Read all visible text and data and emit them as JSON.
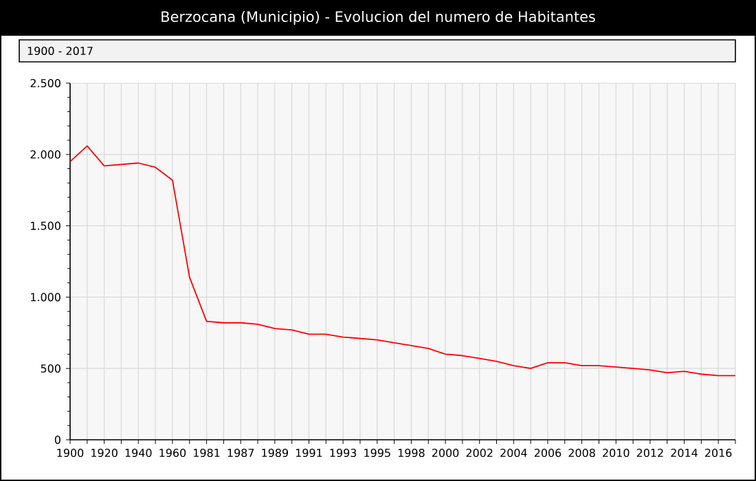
{
  "chart_data": {
    "type": "line",
    "title": "Berzocana (Municipio) - Evolucion del numero de Habitantes",
    "subtitle": "1900 - 2017",
    "categories": [
      "1900",
      null,
      "1920",
      null,
      "1940",
      null,
      "1960",
      null,
      "1981",
      null,
      "1987",
      null,
      "1989",
      null,
      "1991",
      null,
      "1993",
      null,
      "1995",
      null,
      "1998",
      null,
      "2000",
      null,
      "2002",
      null,
      "2004",
      null,
      "2006",
      null,
      "2008",
      null,
      "2010",
      null,
      "2012",
      null,
      "2014",
      null,
      "2016",
      null
    ],
    "series": [
      {
        "color": "#ff0000",
        "values": [
          1950,
          2060,
          1920,
          1930,
          1940,
          1910,
          1820,
          1140,
          830,
          820,
          820,
          810,
          780,
          770,
          740,
          740,
          720,
          710,
          700,
          680,
          660,
          640,
          600,
          590,
          570,
          550,
          520,
          500,
          540,
          540,
          520,
          520,
          510,
          500,
          490,
          470,
          480,
          460,
          450,
          450
        ]
      }
    ],
    "ylim": [
      0,
      2500
    ],
    "yticks": [
      {
        "value": 0,
        "label": "0"
      },
      {
        "value": 500,
        "label": "500"
      },
      {
        "value": 1000,
        "label": "1.000"
      },
      {
        "value": 1500,
        "label": "1.500"
      },
      {
        "value": 2000,
        "label": "2.000"
      },
      {
        "value": 2500,
        "label": "2.500"
      }
    ],
    "grid": true
  }
}
